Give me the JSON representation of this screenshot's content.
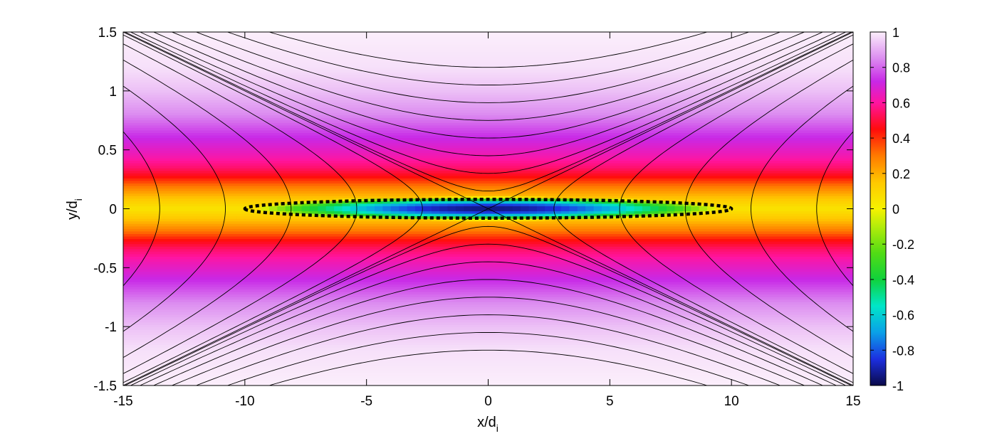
{
  "chart_data": {
    "type": "heatmap",
    "title": "",
    "xlabel": "x/d",
    "xlabel_sub": "i",
    "ylabel": "y/d",
    "ylabel_sub": "i",
    "xlim": [
      -15,
      15
    ],
    "ylim": [
      -1.5,
      1.5
    ],
    "xticks": [
      -15,
      -10,
      -5,
      0,
      5,
      10,
      15
    ],
    "yticks": [
      -1.5,
      -1,
      -0.5,
      0,
      0.5,
      1,
      1.5
    ],
    "xtick_labels": [
      "-15",
      "-10",
      "-5",
      "0",
      "5",
      "10",
      "15"
    ],
    "ytick_labels": [
      "-1.5",
      "-1",
      "-0.5",
      "0",
      "0.5",
      "1",
      "1.5"
    ],
    "colorbar": {
      "range": [
        -1,
        1
      ],
      "ticks": [
        -1,
        -0.8,
        -0.6,
        -0.4,
        -0.2,
        0,
        0.2,
        0.4,
        0.6,
        0.8,
        1
      ],
      "tick_labels": [
        "-1",
        "-0.8",
        "-0.6",
        "-0.4",
        "-0.2",
        "0",
        "0.2",
        "0.4",
        "0.6",
        "0.8",
        "1"
      ],
      "colormap": [
        {
          "v": -1.0,
          "color": "#0a0a4a"
        },
        {
          "v": -0.85,
          "color": "#1c2fe0"
        },
        {
          "v": -0.7,
          "color": "#0aa0e8"
        },
        {
          "v": -0.55,
          "color": "#00e6c8"
        },
        {
          "v": -0.4,
          "color": "#10d23c"
        },
        {
          "v": -0.25,
          "color": "#52dc14"
        },
        {
          "v": -0.1,
          "color": "#b4ec0a"
        },
        {
          "v": 0.0,
          "color": "#f6f200"
        },
        {
          "v": 0.15,
          "color": "#ffc800"
        },
        {
          "v": 0.3,
          "color": "#ff7a00"
        },
        {
          "v": 0.45,
          "color": "#ff0c0c"
        },
        {
          "v": 0.6,
          "color": "#ff14a0"
        },
        {
          "v": 0.72,
          "color": "#c828e6"
        },
        {
          "v": 0.85,
          "color": "#dc8cf0"
        },
        {
          "v": 1.0,
          "color": "#fbeefb"
        }
      ]
    },
    "field": {
      "description_units": "colour = field value vs y (and x near X-line)",
      "profile_y": [
        0,
        0.1,
        0.2,
        0.27,
        0.35,
        0.45,
        0.6,
        0.8,
        1.0,
        1.2,
        1.5
      ],
      "profile_v": [
        0.05,
        0.17,
        0.32,
        0.45,
        0.55,
        0.63,
        0.72,
        0.85,
        0.93,
        0.98,
        1.0
      ],
      "center_dip": {
        "x": 0,
        "y": 0,
        "value": -0.95,
        "half_width_x": 9.5,
        "half_width_y": 0.1
      }
    },
    "field_lines": {
      "separatrix_slope": 0.1,
      "psi_levels": [
        0.25,
        0.5,
        0.75,
        1.0,
        1.25,
        1.5,
        1.75,
        2.0
      ],
      "minus_psi_levels": [
        0.5,
        1.0,
        1.5,
        2.0,
        2.5
      ],
      "line_color": "#000000"
    },
    "ellipse": {
      "center": [
        0,
        0
      ],
      "semi_axes": [
        10,
        0.08
      ],
      "style": "dotted",
      "color": "#000000"
    }
  }
}
